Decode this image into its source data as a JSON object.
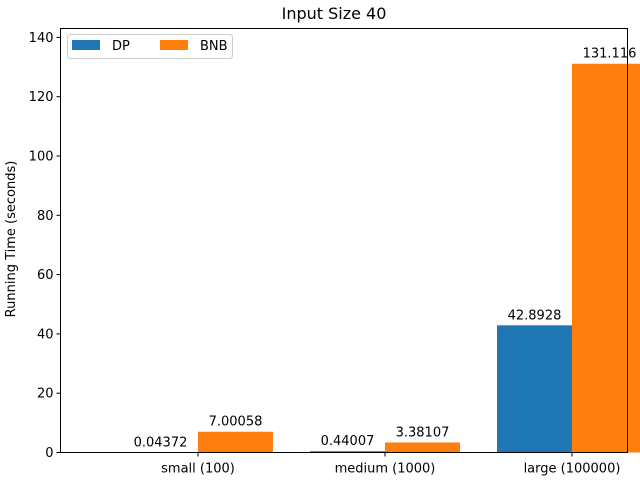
{
  "chart_data": {
    "type": "bar",
    "title": "Input Size 40",
    "xlabel": "",
    "ylabel": "Running Time (seconds)",
    "categories": [
      "small (100)",
      "medium (1000)",
      "large (100000)"
    ],
    "series": [
      {
        "name": "DP",
        "color": "#1f77b4",
        "values": [
          0.04372,
          0.44007,
          42.8928
        ],
        "labels": [
          "0.04372",
          "0.44007",
          "42.8928"
        ]
      },
      {
        "name": "BNB",
        "color": "#ff7f0e",
        "values": [
          7.00058,
          3.38107,
          131.116
        ],
        "labels": [
          "7.00058",
          "3.38107",
          "131.116"
        ]
      }
    ],
    "ylim": [
      0,
      143
    ],
    "yticks": [
      0,
      20,
      40,
      60,
      80,
      100,
      120,
      140
    ],
    "grid": false,
    "legend": "top-left"
  }
}
